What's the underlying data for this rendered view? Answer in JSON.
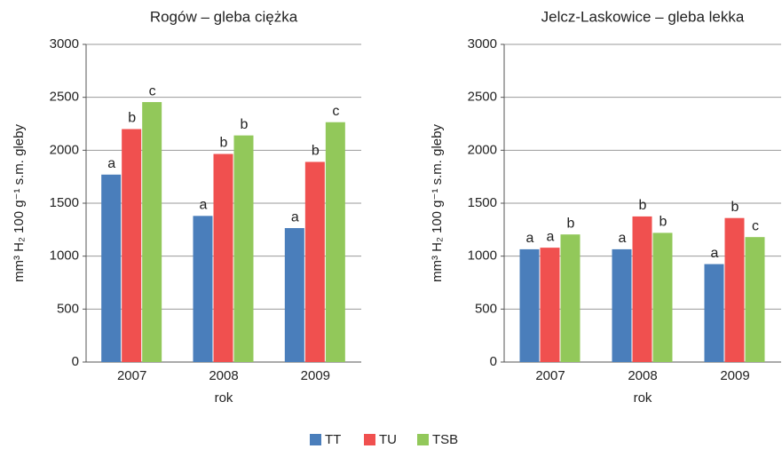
{
  "chart_data": [
    {
      "type": "bar",
      "title": "Rogów – gleba ciężka",
      "x_label": "rok",
      "y_label": "mm³ H₂ 100 g⁻¹ s.m. gleby",
      "categories": [
        "2007",
        "2008",
        "2009"
      ],
      "series": [
        {
          "values": [
            1770,
            1380,
            1265
          ],
          "letters": [
            "a",
            "a",
            "a"
          ]
        },
        {
          "values": [
            2200,
            1965,
            1890
          ],
          "letters": [
            "b",
            "b",
            "b"
          ]
        },
        {
          "values": [
            2455,
            2140,
            2265
          ],
          "letters": [
            "c",
            "b",
            "c"
          ]
        }
      ],
      "ylim": [
        0,
        3000
      ],
      "yticks": [
        0,
        500,
        1000,
        1500,
        2000,
        2500,
        3000
      ],
      "grid": true
    },
    {
      "type": "bar",
      "title": "Jelcz-Laskowice – gleba lekka",
      "x_label": "rok",
      "y_label": "mm³ H₂ 100 g⁻¹ s.m. gleby",
      "categories": [
        "2007",
        "2008",
        "2009"
      ],
      "series": [
        {
          "values": [
            1065,
            1065,
            925
          ],
          "letters": [
            "a",
            "a",
            "a"
          ]
        },
        {
          "values": [
            1080,
            1375,
            1360
          ],
          "letters": [
            "a",
            "b",
            "b"
          ]
        },
        {
          "values": [
            1205,
            1220,
            1180
          ],
          "letters": [
            "b",
            "b",
            "c"
          ]
        }
      ],
      "ylim": [
        0,
        3000
      ],
      "yticks": [
        0,
        500,
        1000,
        1500,
        2000,
        2500,
        3000
      ],
      "grid": true
    }
  ],
  "legend": [
    {
      "name": "TT",
      "color": "#4a7ebb"
    },
    {
      "name": "TU",
      "color": "#f0504f"
    },
    {
      "name": "TSB",
      "color": "#92c85a"
    }
  ]
}
